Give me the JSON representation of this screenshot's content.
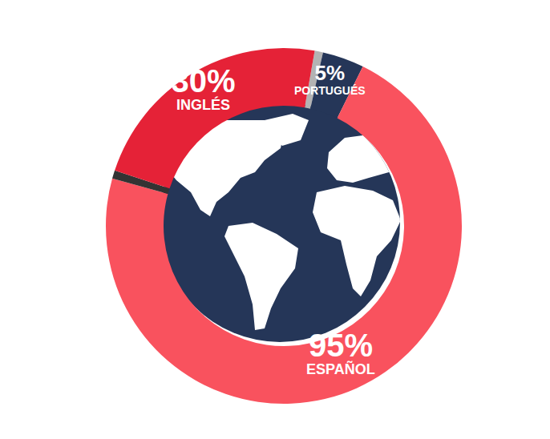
{
  "chart_data": {
    "type": "pie",
    "categories": [
      null,
      "PORTUGUÉS",
      "ESPAÑOL",
      null,
      "INGLÉS"
    ],
    "values": [
      1,
      5,
      95,
      1,
      30
    ],
    "value_labels": [
      null,
      "5%",
      "95%",
      null,
      "30%"
    ],
    "colors": [
      "#b3b3b3",
      "#253658",
      "#f9525e",
      "#333333",
      "#e52237"
    ],
    "data_labels": true
  }
}
